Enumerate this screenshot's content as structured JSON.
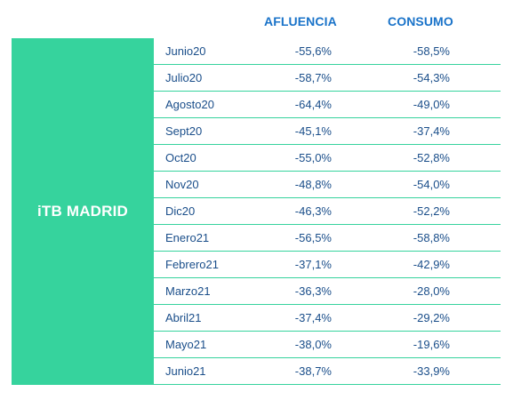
{
  "header": {
    "afluencia_label": "AFLUENCIA",
    "consumo_label": "CONSUMO"
  },
  "group": {
    "label": "iTB MADRID",
    "color": "#36d39d"
  },
  "colors": {
    "header_text": "#1a73c9",
    "row_text": "#1a4e8a",
    "divider": "#36d39d"
  },
  "rows": [
    {
      "month": "Junio20",
      "afluencia": "-55,6%",
      "consumo": "-58,5%"
    },
    {
      "month": "Julio20",
      "afluencia": "-58,7%",
      "consumo": "-54,3%"
    },
    {
      "month": "Agosto20",
      "afluencia": "-64,4%",
      "consumo": "-49,0%"
    },
    {
      "month": "Sept20",
      "afluencia": "-45,1%",
      "consumo": "-37,4%"
    },
    {
      "month": "Oct20",
      "afluencia": "-55,0%",
      "consumo": "-52,8%"
    },
    {
      "month": "Nov20",
      "afluencia": "-48,8%",
      "consumo": "-54,0%"
    },
    {
      "month": "Dic20",
      "afluencia": "-46,3%",
      "consumo": "-52,2%"
    },
    {
      "month": "Enero21",
      "afluencia": "-56,5%",
      "consumo": "-58,8%"
    },
    {
      "month": "Febrero21",
      "afluencia": "-37,1%",
      "consumo": "-42,9%"
    },
    {
      "month": "Marzo21",
      "afluencia": "-36,3%",
      "consumo": "-28,0%"
    },
    {
      "month": "Abril21",
      "afluencia": "-37,4%",
      "consumo": "-29,2%"
    },
    {
      "month": "Mayo21",
      "afluencia": "-38,0%",
      "consumo": "-19,6%"
    },
    {
      "month": "Junio21",
      "afluencia": "-38,7%",
      "consumo": "-33,9%"
    }
  ]
}
